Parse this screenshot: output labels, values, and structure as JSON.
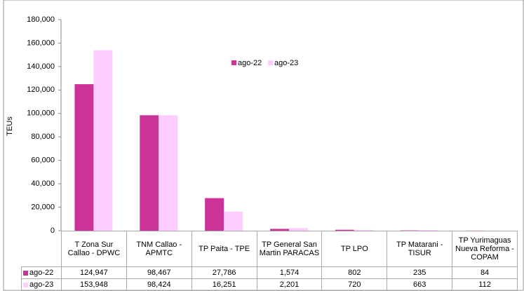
{
  "chart_data": {
    "type": "bar",
    "y_label": "TEUs",
    "categories": [
      "T Zona Sur Callao - DPWC",
      "TNM Callao - APMTC",
      "TP Paita - TPE",
      "TP General San Martin PARACAS",
      "TP LPO",
      "TP Matarani - TISUR",
      "TP Yurimaguas Nueva Reforma - COPAM"
    ],
    "series": [
      {
        "name": "ago-22",
        "color": "#cc3399",
        "values": [
          124947,
          98467,
          27786,
          1574,
          802,
          235,
          84
        ],
        "value_labels": [
          "124,947",
          "98,467",
          "27,786",
          "1,574",
          "802",
          "235",
          "84"
        ]
      },
      {
        "name": "ago-23",
        "color": "#ffccff",
        "values": [
          153948,
          98424,
          16251,
          2201,
          720,
          663,
          112
        ],
        "value_labels": [
          "153,948",
          "98,424",
          "16,251",
          "2,201",
          "720",
          "663",
          "112"
        ]
      }
    ],
    "ylim": [
      0,
      180000
    ],
    "yticks": [
      0,
      {
        "value": 20000,
        "label": "20,000"
      },
      {
        "value": 40000,
        "label": "40,000"
      },
      {
        "value": 60000,
        "label": "60,000"
      },
      {
        "value": 80000,
        "label": "80,000"
      },
      {
        "value": 100000,
        "label": "100,000"
      },
      {
        "value": 120000,
        "label": "120,000"
      },
      {
        "value": 140000,
        "label": "140,000"
      },
      {
        "value": 160000,
        "label": "160,000"
      },
      {
        "value": 180000,
        "label": "180,000"
      }
    ]
  }
}
